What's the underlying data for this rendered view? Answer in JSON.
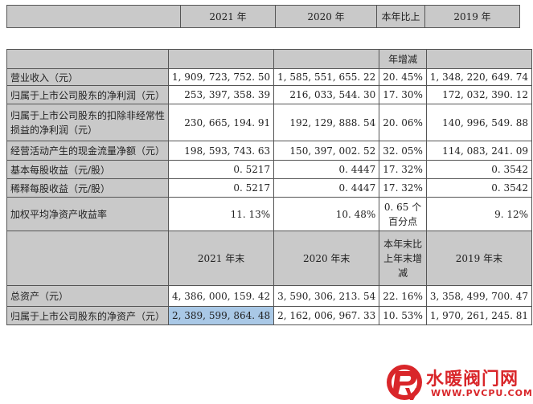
{
  "top_header": {
    "y2021": "2021 年",
    "y2020": "2020 年",
    "change": "本年比上",
    "y2019": "2019 年"
  },
  "section1": {
    "change_label": "年增减",
    "rows": [
      {
        "label": "营业收入（元）",
        "v2021": "1, 909, 723, 752. 50",
        "v2020": "1, 585, 551, 655. 22",
        "change": "20. 45%",
        "v2019": "1, 348, 220, 649. 74"
      },
      {
        "label": "归属于上市公司股东的净利润（元）",
        "v2021": "253, 397, 358. 39",
        "v2020": "216, 033, 544. 30",
        "change": "17. 30%",
        "v2019": "172, 032, 390. 12"
      },
      {
        "label": "归属于上市公司股东的扣除非经常性损益的净利润（元）",
        "v2021": "230, 665, 194. 91",
        "v2020": "192, 129, 888. 54",
        "change": "20. 06%",
        "v2019": "140, 996, 549. 88"
      },
      {
        "label": "经营活动产生的现金流量净额（元）",
        "v2021": "198, 593, 743. 63",
        "v2020": "150, 397, 002. 52",
        "change": "32. 05%",
        "v2019": "114, 083, 241. 09"
      },
      {
        "label": "基本每股收益（元/股）",
        "v2021": "0. 5217",
        "v2020": "0. 4447",
        "change": "17. 32%",
        "v2019": "0. 3542"
      },
      {
        "label": "稀释每股收益（元/股）",
        "v2021": "0. 5217",
        "v2020": "0. 4447",
        "change": "17. 32%",
        "v2019": "0. 3542"
      },
      {
        "label": "加权平均净资产收益率",
        "v2021": "11. 13%",
        "v2020": "10. 48%",
        "change": "0. 65 个百分点",
        "v2019": "9. 12%"
      }
    ]
  },
  "section2": {
    "header": {
      "y2021": "2021 年末",
      "y2020": "2020 年末",
      "change": "本年末比上年末增减",
      "y2019": "2019 年末"
    },
    "rows": [
      {
        "label": "总资产（元）",
        "v2021": "4, 386, 000, 159. 42",
        "v2020": "3, 590, 306, 213. 54",
        "change": "22. 16%",
        "v2019": "3, 358, 499, 700. 47"
      },
      {
        "label": "归属于上市公司股东的净资产（元）",
        "v2021": "2, 389, 599, 864. 48",
        "v2020": "2, 162, 006, 967. 33",
        "change": "10. 53%",
        "v2019": "1, 970, 261, 245. 81"
      }
    ]
  },
  "watermark": {
    "title": "水暖阀门网",
    "url": "WWW.PVCPU.COM",
    "logo_icon": "pv-logo-icon",
    "color": "#d9262a"
  }
}
